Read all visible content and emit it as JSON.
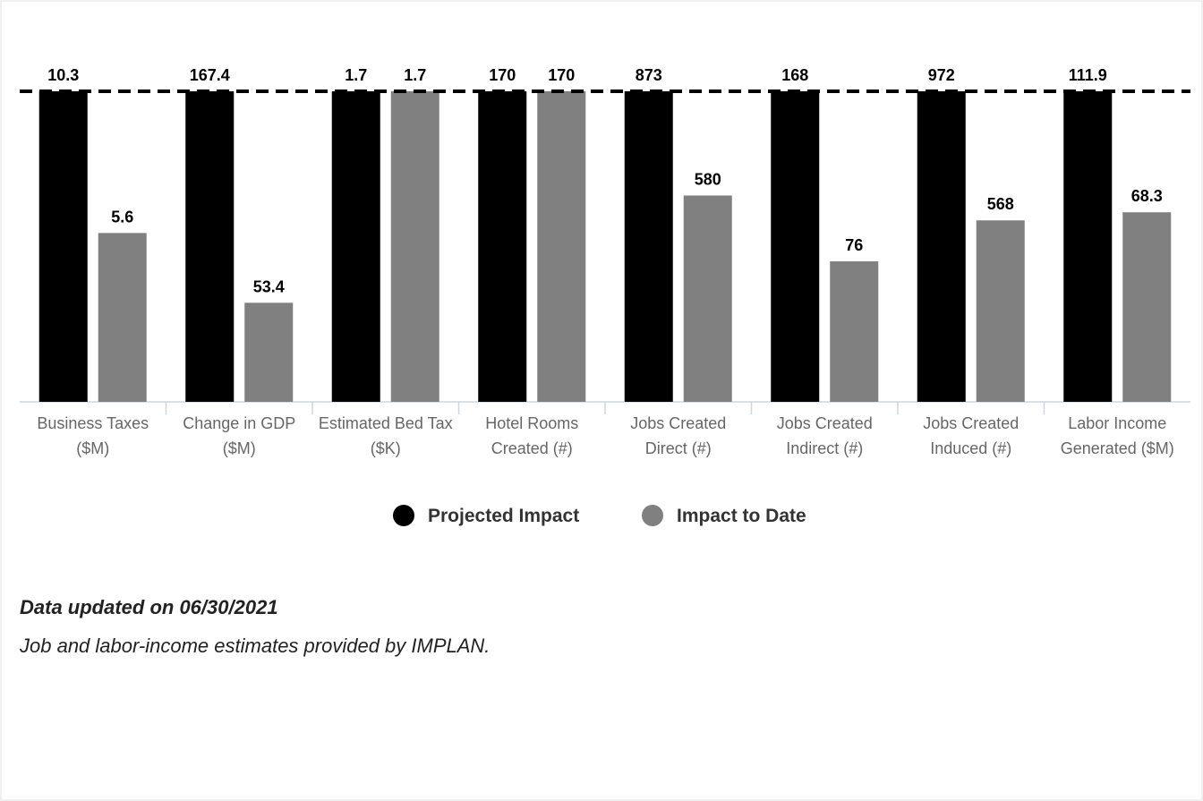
{
  "chart_data": {
    "type": "bar",
    "categories": [
      "Business Taxes ($M)",
      "Change in GDP ($M)",
      "Estimated Bed Tax ($K)",
      "Hotel Rooms Created (#)",
      "Jobs Created Direct (#)",
      "Jobs Created Indirect (#)",
      "Jobs Created Induced (#)",
      "Labor Income Generated ($M)"
    ],
    "series": [
      {
        "name": "Projected Impact",
        "color": "#000000",
        "values": [
          10.3,
          167.4,
          1.7,
          170,
          873,
          168,
          972,
          111.9
        ]
      },
      {
        "name": "Impact to Date",
        "color": "#808080",
        "values": [
          5.6,
          53.4,
          1.7,
          170,
          580,
          76,
          568,
          68.3
        ]
      }
    ],
    "legend": "bottom"
  },
  "notes": [
    "Data updated on 06/30/2021",
    "Job and labor-income estimates provided by IMPLAN."
  ]
}
